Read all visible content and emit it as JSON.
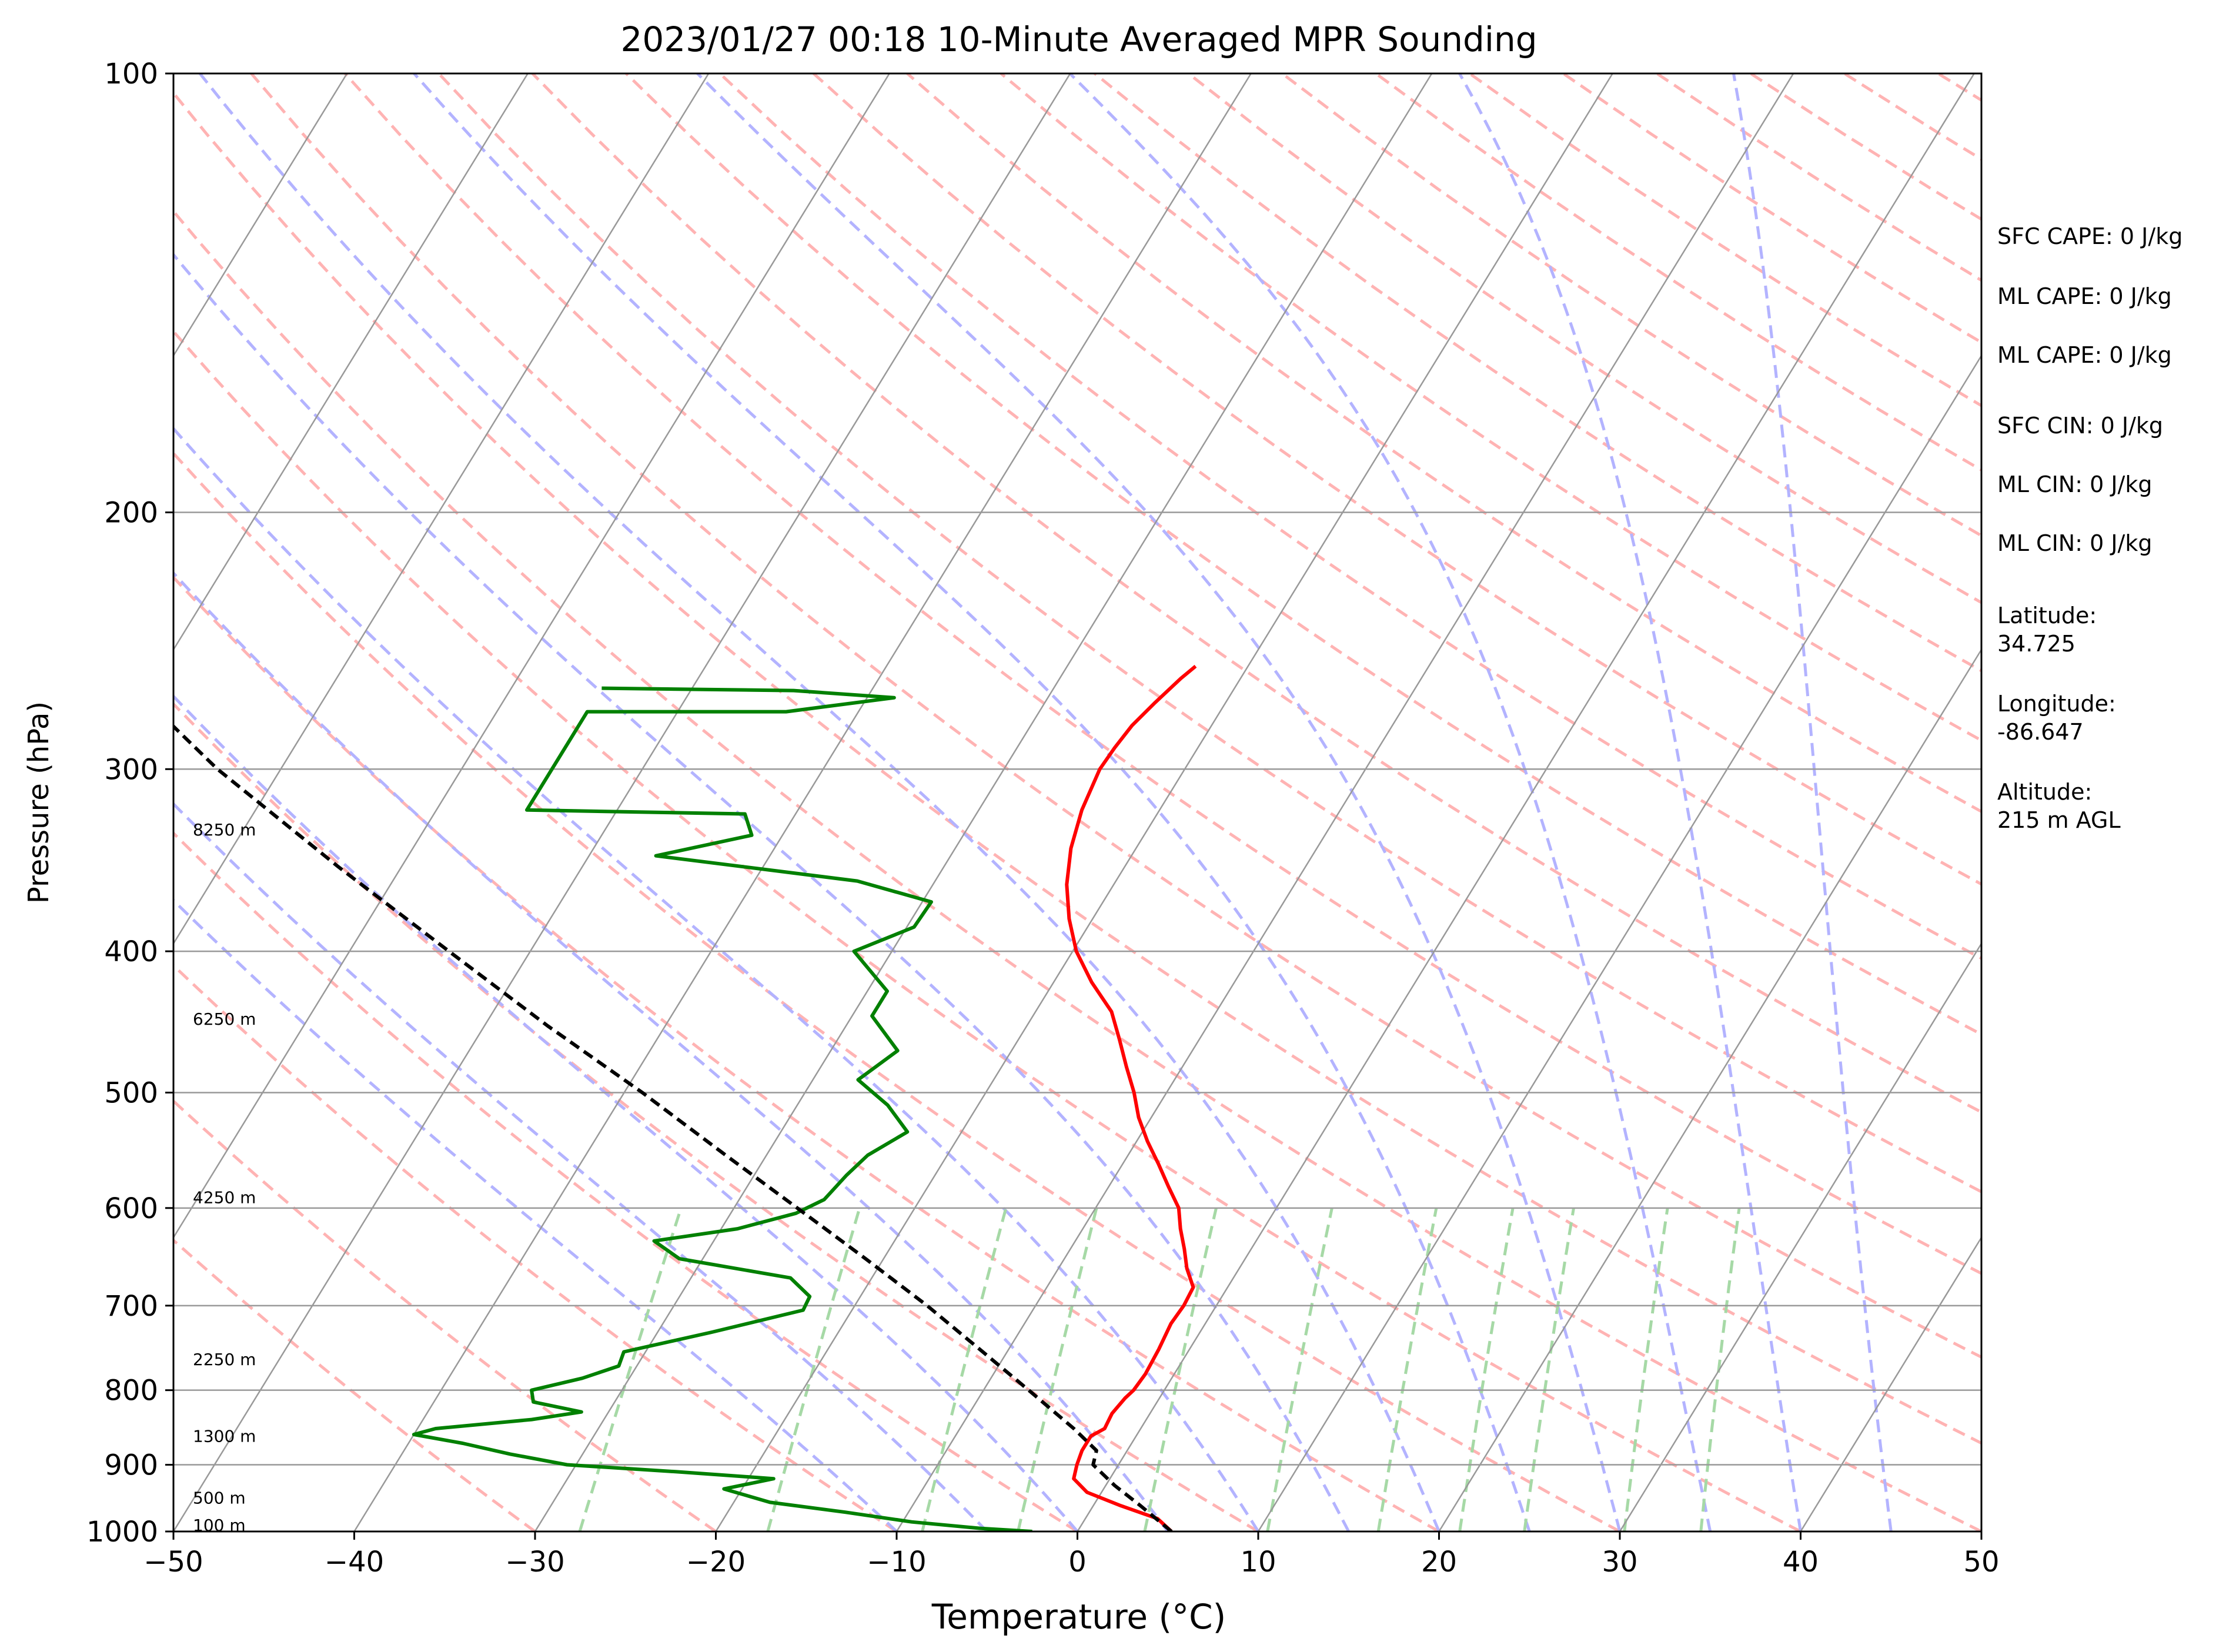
{
  "chart_data": {
    "type": "line",
    "subtype": "skew-T log-P sounding",
    "title": "2023/01/27 00:18 10-Minute Averaged MPR Sounding",
    "xlabel": "Temperature (°C)",
    "ylabel": "Pressure (hPa)",
    "xlim": [
      -50,
      50
    ],
    "ylim": [
      1000,
      100
    ],
    "y_scale": "log",
    "x_ticks": [
      "−50",
      "−40",
      "−30",
      "−20",
      "−10",
      "0",
      "10",
      "20",
      "30",
      "40",
      "50"
    ],
    "x_tick_values": [
      -50,
      -40,
      -30,
      -20,
      -10,
      0,
      10,
      20,
      30,
      40,
      50
    ],
    "y_ticks": [
      "100",
      "200",
      "300",
      "400",
      "500",
      "600",
      "700",
      "800",
      "900",
      "1000"
    ],
    "y_tick_values": [
      100,
      200,
      300,
      400,
      500,
      600,
      700,
      800,
      900,
      1000
    ],
    "grid": true,
    "series": [
      {
        "role": "temperature",
        "color": "#ff0000",
        "points": [
          [
            1000,
            5.2
          ],
          [
            980,
            4.0
          ],
          [
            960,
            1.5
          ],
          [
            940,
            -0.8
          ],
          [
            920,
            -2.0
          ],
          [
            900,
            -2.3
          ],
          [
            880,
            -2.5
          ],
          [
            860,
            -2.5
          ],
          [
            850,
            -2.0
          ],
          [
            830,
            -2.1
          ],
          [
            810,
            -1.9
          ],
          [
            800,
            -1.7
          ],
          [
            780,
            -1.6
          ],
          [
            750,
            -1.7
          ],
          [
            720,
            -1.9
          ],
          [
            700,
            -1.8
          ],
          [
            680,
            -1.9
          ],
          [
            660,
            -2.9
          ],
          [
            640,
            -3.7
          ],
          [
            620,
            -4.6
          ],
          [
            600,
            -5.4
          ],
          [
            580,
            -6.7
          ],
          [
            560,
            -8.0
          ],
          [
            540,
            -9.4
          ],
          [
            520,
            -10.7
          ],
          [
            500,
            -11.8
          ],
          [
            480,
            -13.1
          ],
          [
            460,
            -14.4
          ],
          [
            440,
            -15.8
          ],
          [
            420,
            -17.9
          ],
          [
            400,
            -19.8
          ],
          [
            380,
            -21.3
          ],
          [
            360,
            -22.6
          ],
          [
            340,
            -23.6
          ],
          [
            320,
            -24.3
          ],
          [
            300,
            -24.7
          ],
          [
            290,
            -24.6
          ],
          [
            280,
            -24.4
          ],
          [
            270,
            -23.9
          ],
          [
            260,
            -23.3
          ],
          [
            255,
            -22.9
          ]
        ]
      },
      {
        "role": "dewpoint",
        "color": "#008000",
        "points": [
          [
            1000,
            -2.5
          ],
          [
            995,
            -5.5
          ],
          [
            985,
            -9.5
          ],
          [
            970,
            -13.5
          ],
          [
            955,
            -18.0
          ],
          [
            935,
            -21.0
          ],
          [
            920,
            -18.6
          ],
          [
            910,
            -24.2
          ],
          [
            900,
            -30.5
          ],
          [
            885,
            -34.0
          ],
          [
            870,
            -37.0
          ],
          [
            858,
            -40.0
          ],
          [
            850,
            -39.0
          ],
          [
            838,
            -34.0
          ],
          [
            828,
            -31.5
          ],
          [
            815,
            -34.5
          ],
          [
            800,
            -35.0
          ],
          [
            785,
            -32.6
          ],
          [
            770,
            -31.0
          ],
          [
            753,
            -31.2
          ],
          [
            730,
            -27.0
          ],
          [
            705,
            -22.7
          ],
          [
            690,
            -22.8
          ],
          [
            670,
            -24.5
          ],
          [
            650,
            -31.3
          ],
          [
            632,
            -33.3
          ],
          [
            620,
            -29.1
          ],
          [
            605,
            -26.4
          ],
          [
            592,
            -25.3
          ],
          [
            570,
            -24.9
          ],
          [
            552,
            -24.4
          ],
          [
            532,
            -23.0
          ],
          [
            510,
            -25.0
          ],
          [
            490,
            -27.5
          ],
          [
            468,
            -26.3
          ],
          [
            443,
            -28.9
          ],
          [
            426,
            -28.9
          ],
          [
            400,
            -32.1
          ],
          [
            385,
            -29.6
          ],
          [
            370,
            -29.5
          ],
          [
            358,
            -34.3
          ],
          [
            344,
            -46.3
          ],
          [
            333,
            -41.7
          ],
          [
            322,
            -42.8
          ],
          [
            320,
            -55.0
          ],
          [
            274,
            -55.0
          ],
          [
            274,
            -44.0
          ],
          [
            268,
            -38.5
          ],
          [
            265,
            -44.3
          ],
          [
            264,
            -55.0
          ]
        ]
      },
      {
        "role": "parcel-path",
        "color": "#000000",
        "style": "dashed",
        "points": [
          [
            1000,
            5.2
          ],
          [
            960,
            2.6
          ],
          [
            930,
            0.5
          ],
          [
            900,
            -1.4
          ],
          [
            880,
            -1.7
          ],
          [
            850,
            -3.7
          ],
          [
            800,
            -7.5
          ],
          [
            750,
            -11.6
          ],
          [
            700,
            -16.0
          ],
          [
            650,
            -21.0
          ],
          [
            600,
            -26.5
          ],
          [
            550,
            -32.5
          ],
          [
            500,
            -39.0
          ],
          [
            450,
            -46.5
          ],
          [
            400,
            -54.5
          ],
          [
            350,
            -63.5
          ],
          [
            300,
            -73.5
          ],
          [
            268,
            -80.0
          ]
        ]
      }
    ],
    "height_labels": [
      {
        "text": "100 m",
        "pressure": 990
      },
      {
        "text": "500 m",
        "pressure": 948
      },
      {
        "text": "1300 m",
        "pressure": 860
      },
      {
        "text": "2250 m",
        "pressure": 762
      },
      {
        "text": "4250 m",
        "pressure": 590
      },
      {
        "text": "6250 m",
        "pressure": 445
      },
      {
        "text": "8250 m",
        "pressure": 330
      }
    ],
    "background": {
      "isotherm_color": "#999999",
      "isobar_color": "#999999",
      "dry_adiabat_color": "#ffb3b3",
      "moist_adiabat_color": "#b3b3ff",
      "mixing_ratio_color": "#a6d9a6"
    }
  },
  "info": {
    "sfc_cape": "SFC CAPE: 0 J/kg",
    "ml_cape_1": "ML CAPE: 0 J/kg",
    "ml_cape_2": "ML CAPE: 0 J/kg",
    "sfc_cin": "SFC CIN: 0 J/kg",
    "ml_cin_1": "ML CIN: 0 J/kg",
    "ml_cin_2": "ML CIN: 0 J/kg",
    "latitude_label": "Latitude:",
    "latitude_value": "34.725",
    "longitude_label": "Longitude:",
    "longitude_value": "-86.647",
    "altitude_label": "Altitude:",
    "altitude_value": "215 m AGL"
  }
}
